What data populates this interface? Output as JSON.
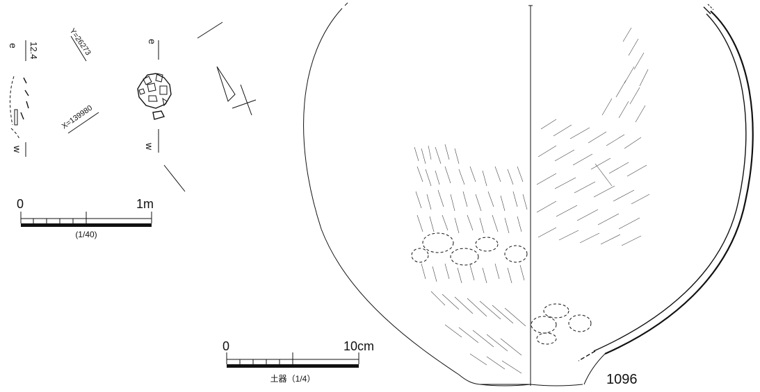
{
  "plan": {
    "section_top_label": "e",
    "section_bottom_label": "w",
    "elevation": "12.4",
    "coord_y": "Y=26273",
    "coord_x": "X=139980",
    "plan_top_label": "e",
    "plan_bottom_label": "w"
  },
  "scale_plan": {
    "start_label": "0",
    "end_label": "1m",
    "ratio_label": "(1/40)"
  },
  "scale_pottery": {
    "start_label": "0",
    "end_label": "10cm",
    "ratio_label": "土器（1/4）"
  },
  "vessel": {
    "catalog_number": "1096"
  }
}
